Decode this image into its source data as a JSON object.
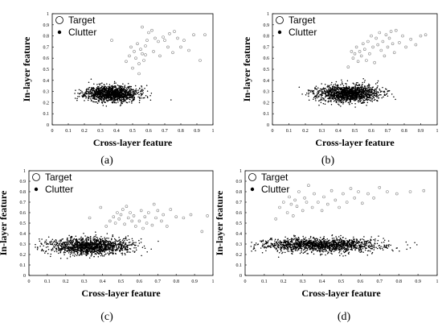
{
  "chart_data": [
    {
      "type": "scatter",
      "caption": "(a)",
      "xlabel": "Cross-layer feature",
      "ylabel": "In-layer feature",
      "xlim": [
        0,
        1
      ],
      "ylim": [
        0,
        1
      ],
      "xticks": [
        "0",
        "0.1",
        "0.2",
        "0.3",
        "0.4",
        "0.5",
        "0.6",
        "0.7",
        "0.8",
        "0.9",
        "1"
      ],
      "yticks": [
        "0",
        "0.1",
        "0.2",
        "0.3",
        "0.4",
        "0.5",
        "0.6",
        "0.7",
        "0.8",
        "0.9",
        "1"
      ],
      "legend": {
        "position": "top-left",
        "entries": [
          "Target",
          "Clutter"
        ]
      },
      "grid": false,
      "series": [
        {
          "name": "Target",
          "marker": "open-circle",
          "color": "#888888",
          "points": [
            [
              0.37,
              0.76
            ],
            [
              0.46,
              0.57
            ],
            [
              0.48,
              0.62
            ],
            [
              0.49,
              0.7
            ],
            [
              0.5,
              0.51
            ],
            [
              0.51,
              0.66
            ],
            [
              0.52,
              0.6
            ],
            [
              0.53,
              0.73
            ],
            [
              0.54,
              0.55
            ],
            [
              0.55,
              0.68
            ],
            [
              0.56,
              0.88
            ],
            [
              0.56,
              0.64
            ],
            [
              0.57,
              0.58
            ],
            [
              0.58,
              0.71
            ],
            [
              0.59,
              0.76
            ],
            [
              0.6,
              0.83
            ],
            [
              0.62,
              0.85
            ],
            [
              0.63,
              0.66
            ],
            [
              0.64,
              0.78
            ],
            [
              0.66,
              0.75
            ],
            [
              0.67,
              0.62
            ],
            [
              0.69,
              0.79
            ],
            [
              0.7,
              0.76
            ],
            [
              0.72,
              0.7
            ],
            [
              0.73,
              0.82
            ],
            [
              0.75,
              0.65
            ],
            [
              0.76,
              0.84
            ],
            [
              0.78,
              0.78
            ],
            [
              0.8,
              0.7
            ],
            [
              0.82,
              0.76
            ],
            [
              0.85,
              0.67
            ],
            [
              0.88,
              0.81
            ],
            [
              0.92,
              0.58
            ],
            [
              0.95,
              0.81
            ],
            [
              0.54,
              0.46
            ],
            [
              0.58,
              0.63
            ]
          ]
        },
        {
          "name": "Clutter",
          "marker": "dot",
          "color": "#000000",
          "center": [
            0.37,
            0.28
          ],
          "spread": [
            0.08,
            0.035
          ],
          "count": 1400,
          "seed": 11
        }
      ]
    },
    {
      "type": "scatter",
      "caption": "(b)",
      "xlabel": "Cross-layer feature",
      "ylabel": "In-layer feature",
      "xlim": [
        0,
        1
      ],
      "ylim": [
        0,
        1
      ],
      "xticks": [
        "0",
        "0.1",
        "0.2",
        "0.3",
        "0.4",
        "0.5",
        "0.6",
        "0.7",
        "0.8",
        "0.9",
        "1"
      ],
      "yticks": [
        "0",
        "0.1",
        "0.2",
        "0.3",
        "0.4",
        "0.5",
        "0.6",
        "0.7",
        "0.8",
        "0.9",
        "1"
      ],
      "legend": {
        "position": "top-left",
        "entries": [
          "Target",
          "Clutter"
        ]
      },
      "grid": false,
      "series": [
        {
          "name": "Target",
          "marker": "open-circle",
          "color": "#888888",
          "points": [
            [
              0.46,
              0.52
            ],
            [
              0.49,
              0.6
            ],
            [
              0.5,
              0.64
            ],
            [
              0.51,
              0.7
            ],
            [
              0.52,
              0.57
            ],
            [
              0.53,
              0.66
            ],
            [
              0.54,
              0.62
            ],
            [
              0.55,
              0.73
            ],
            [
              0.56,
              0.68
            ],
            [
              0.57,
              0.58
            ],
            [
              0.58,
              0.75
            ],
            [
              0.59,
              0.64
            ],
            [
              0.6,
              0.8
            ],
            [
              0.61,
              0.7
            ],
            [
              0.62,
              0.56
            ],
            [
              0.63,
              0.78
            ],
            [
              0.64,
              0.72
            ],
            [
              0.65,
              0.83
            ],
            [
              0.66,
              0.67
            ],
            [
              0.67,
              0.75
            ],
            [
              0.68,
              0.62
            ],
            [
              0.69,
              0.81
            ],
            [
              0.7,
              0.7
            ],
            [
              0.71,
              0.78
            ],
            [
              0.72,
              0.84
            ],
            [
              0.73,
              0.73
            ],
            [
              0.74,
              0.65
            ],
            [
              0.75,
              0.85
            ],
            [
              0.77,
              0.74
            ],
            [
              0.79,
              0.8
            ],
            [
              0.81,
              0.7
            ],
            [
              0.84,
              0.77
            ],
            [
              0.87,
              0.72
            ],
            [
              0.9,
              0.8
            ],
            [
              0.93,
              0.81
            ],
            [
              0.48,
              0.66
            ]
          ]
        },
        {
          "name": "Clutter",
          "marker": "dot",
          "color": "#000000",
          "center": [
            0.46,
            0.28
          ],
          "spread": [
            0.095,
            0.038
          ],
          "count": 1400,
          "seed": 23
        }
      ]
    },
    {
      "type": "scatter",
      "caption": "(c)",
      "xlabel": "Cross-layer feature",
      "ylabel": "In-layer feature",
      "xlim": [
        0,
        1
      ],
      "ylim": [
        0,
        1
      ],
      "xticks": [
        "0",
        "0.1",
        "0.2",
        "0.3",
        "0.4",
        "0.5",
        "0.6",
        "0.7",
        "0.8",
        "0.9",
        "1"
      ],
      "yticks": [
        "0",
        "0.1",
        "0.2",
        "0.3",
        "0.4",
        "0.5",
        "0.6",
        "0.7",
        "0.8",
        "0.9",
        "1"
      ],
      "legend": {
        "position": "top-left",
        "entries": [
          "Target",
          "Clutter"
        ]
      },
      "grid": false,
      "series": [
        {
          "name": "Target",
          "marker": "open-circle",
          "color": "#888888",
          "points": [
            [
              0.33,
              0.55
            ],
            [
              0.39,
              0.65
            ],
            [
              0.42,
              0.47
            ],
            [
              0.44,
              0.52
            ],
            [
              0.46,
              0.56
            ],
            [
              0.47,
              0.5
            ],
            [
              0.48,
              0.6
            ],
            [
              0.49,
              0.54
            ],
            [
              0.5,
              0.58
            ],
            [
              0.51,
              0.63
            ],
            [
              0.52,
              0.49
            ],
            [
              0.53,
              0.66
            ],
            [
              0.54,
              0.55
            ],
            [
              0.55,
              0.6
            ],
            [
              0.56,
              0.52
            ],
            [
              0.57,
              0.57
            ],
            [
              0.58,
              0.47
            ],
            [
              0.6,
              0.52
            ],
            [
              0.61,
              0.62
            ],
            [
              0.62,
              0.45
            ],
            [
              0.63,
              0.56
            ],
            [
              0.64,
              0.5
            ],
            [
              0.65,
              0.6
            ],
            [
              0.67,
              0.48
            ],
            [
              0.68,
              0.68
            ],
            [
              0.69,
              0.55
            ],
            [
              0.7,
              0.62
            ],
            [
              0.72,
              0.52
            ],
            [
              0.73,
              0.58
            ],
            [
              0.75,
              0.47
            ],
            [
              0.77,
              0.63
            ],
            [
              0.8,
              0.56
            ],
            [
              0.84,
              0.55
            ],
            [
              0.88,
              0.58
            ],
            [
              0.94,
              0.42
            ],
            [
              0.97,
              0.57
            ]
          ]
        },
        {
          "name": "Clutter",
          "marker": "dot",
          "color": "#000000",
          "center": [
            0.33,
            0.28
          ],
          "spread": [
            0.11,
            0.04
          ],
          "count": 1400,
          "seed": 37
        }
      ]
    },
    {
      "type": "scatter",
      "caption": "(d)",
      "xlabel": "Cross-layer feature",
      "ylabel": "In-layer feature",
      "xlim": [
        0,
        1
      ],
      "ylim": [
        0,
        1
      ],
      "xticks": [
        "0",
        "0.1",
        "0.2",
        "0.3",
        "0.4",
        "0.5",
        "0.6",
        "0.7",
        "0.8",
        "0.9",
        "1"
      ],
      "yticks": [
        "0",
        "0.1",
        "0.2",
        "0.3",
        "0.4",
        "0.5",
        "0.6",
        "0.7",
        "0.8",
        "0.9",
        "1"
      ],
      "legend": {
        "position": "top-left",
        "entries": [
          "Target",
          "Clutter"
        ]
      },
      "grid": false,
      "series": [
        {
          "name": "Target",
          "marker": "open-circle",
          "color": "#888888",
          "points": [
            [
              0.16,
              0.54
            ],
            [
              0.18,
              0.65
            ],
            [
              0.2,
              0.7
            ],
            [
              0.22,
              0.6
            ],
            [
              0.23,
              0.75
            ],
            [
              0.24,
              0.68
            ],
            [
              0.25,
              0.57
            ],
            [
              0.26,
              0.72
            ],
            [
              0.27,
              0.66
            ],
            [
              0.28,
              0.8
            ],
            [
              0.3,
              0.62
            ],
            [
              0.31,
              0.74
            ],
            [
              0.32,
              0.7
            ],
            [
              0.33,
              0.86
            ],
            [
              0.35,
              0.65
            ],
            [
              0.36,
              0.78
            ],
            [
              0.38,
              0.7
            ],
            [
              0.4,
              0.62
            ],
            [
              0.41,
              0.75
            ],
            [
              0.43,
              0.68
            ],
            [
              0.45,
              0.81
            ],
            [
              0.47,
              0.72
            ],
            [
              0.49,
              0.65
            ],
            [
              0.51,
              0.78
            ],
            [
              0.53,
              0.7
            ],
            [
              0.55,
              0.83
            ],
            [
              0.57,
              0.74
            ],
            [
              0.59,
              0.8
            ],
            [
              0.61,
              0.69
            ],
            [
              0.64,
              0.78
            ],
            [
              0.67,
              0.74
            ],
            [
              0.7,
              0.84
            ],
            [
              0.74,
              0.8
            ],
            [
              0.79,
              0.78
            ],
            [
              0.86,
              0.8
            ],
            [
              0.93,
              0.81
            ]
          ]
        },
        {
          "name": "Clutter",
          "marker": "dot",
          "color": "#000000",
          "center": [
            0.4,
            0.29
          ],
          "spread": [
            0.16,
            0.033
          ],
          "count": 1500,
          "seed": 53
        }
      ]
    }
  ]
}
